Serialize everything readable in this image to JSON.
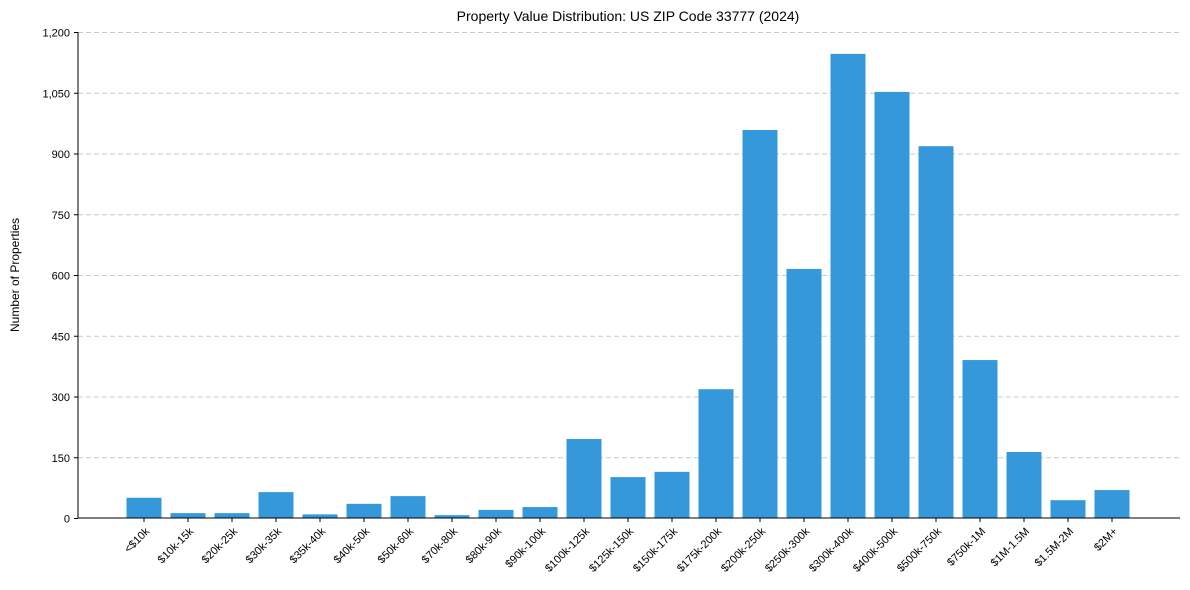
{
  "chart_data": {
    "type": "bar",
    "title": "Property Value Distribution: US ZIP Code 33777 (2024)",
    "xlabel": "",
    "ylabel": "Number of Properties",
    "ylim": [
      0,
      1200
    ],
    "yticks": [
      0,
      150,
      300,
      450,
      600,
      750,
      900,
      1050,
      1200
    ],
    "ytick_labels": [
      "0",
      "150",
      "300",
      "450",
      "600",
      "750",
      "900",
      "1,050",
      "1,200"
    ],
    "grid": "y-dashed",
    "bar_color": "#3498db",
    "categories": [
      "<$10k",
      "$10k-15k",
      "$20k-25k",
      "$30k-35k",
      "$35k-40k",
      "$40k-50k",
      "$50k-60k",
      "$70k-80k",
      "$80k-90k",
      "$90k-100k",
      "$100k-125k",
      "$125k-150k",
      "$150k-175k",
      "$175k-200k",
      "$200k-250k",
      "$250k-300k",
      "$300k-400k",
      "$400k-500k",
      "$500k-750k",
      "$750k-1M",
      "$1M-1.5M",
      "$1.5M-2M",
      "$2M+"
    ],
    "values": [
      50,
      12,
      12,
      64,
      9,
      35,
      54,
      7,
      20,
      27,
      195,
      101,
      114,
      318,
      958,
      615,
      1146,
      1052,
      918,
      390,
      163,
      44,
      69
    ]
  }
}
